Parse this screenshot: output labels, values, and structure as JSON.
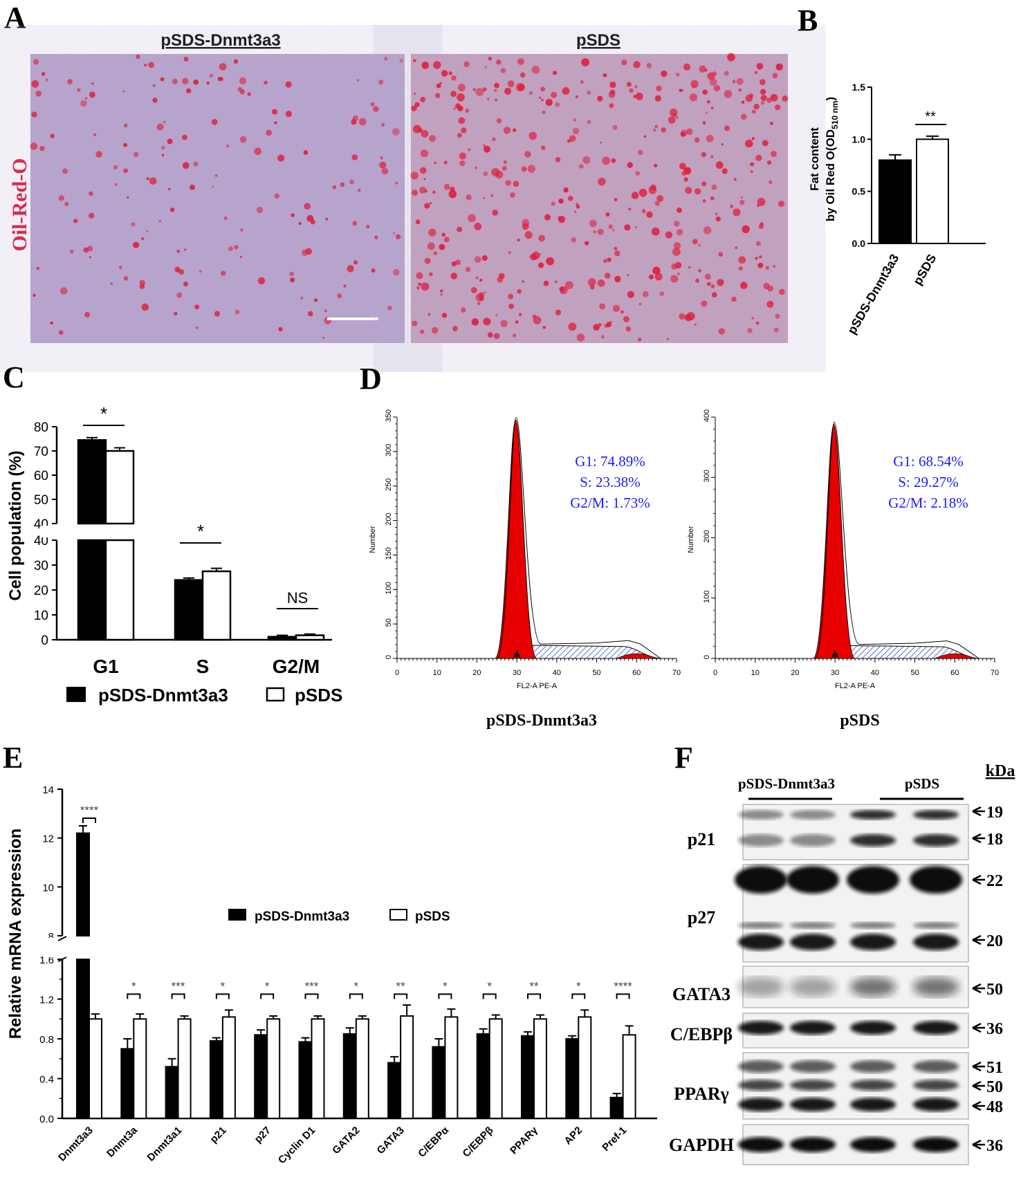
{
  "colors": {
    "bar_dark": "#000000",
    "bar_light": "#ffffff",
    "flow_red": "#e60000",
    "flow_hatch": "#1f3fbf",
    "stat_text": "#1a1aff",
    "oil_red": "#e0203c",
    "micro_bg": "#b7a4cc"
  },
  "panel_labels": {
    "a": "A",
    "b": "B",
    "c": "C",
    "d": "D",
    "e": "E",
    "f": "F"
  },
  "panel_a": {
    "left_title": "pSDS-Dnmt3a3",
    "right_title": "pSDS",
    "stain_label": "Oil-Red-O"
  },
  "panel_b": {
    "chart_data": {
      "type": "bar",
      "categories": [
        "pSDS-Dnmt3a3",
        "pSDS"
      ],
      "values": [
        0.8,
        1.0
      ],
      "errors": [
        0.05,
        0.03
      ],
      "ylabel_line1": "Fat content",
      "ylabel_line2": "by Oil Red O(OD",
      "ylabel_sub": "510 nm",
      "ylabel_end": ")",
      "ylim": [
        0,
        1.5
      ],
      "yticks": [
        "0.0",
        "0.5",
        "1.0",
        "1.5"
      ],
      "significance": "**"
    }
  },
  "panel_c": {
    "chart_data": {
      "type": "bar",
      "categories": [
        "G1",
        "S",
        "G2/M"
      ],
      "series": [
        {
          "name": "pSDS-Dnmt3a3",
          "values": [
            74.5,
            24,
            1.2
          ],
          "errors": [
            1.0,
            0.8,
            0.6
          ]
        },
        {
          "name": "pSDS",
          "values": [
            70,
            27.5,
            1.8
          ],
          "errors": [
            1.3,
            1.2,
            0.5
          ]
        }
      ],
      "ylabel": "Cell population (%)",
      "y_upper_ticks": [
        "40",
        "50",
        "60",
        "70",
        "80"
      ],
      "y_lower_ticks": [
        "0",
        "10",
        "20",
        "30",
        "40"
      ],
      "significance": [
        "*",
        "*",
        "NS"
      ]
    }
  },
  "panel_d": {
    "x_ticks": [
      "0",
      "10",
      "20",
      "30",
      "40",
      "50",
      "60",
      "70"
    ],
    "xlabel": "FL2-A PE-A",
    "ylabel": "Number",
    "left": {
      "title": "pSDS-Dnmt3a3",
      "y_ticks": [
        "0",
        "50",
        "100",
        "150",
        "200",
        "250",
        "300",
        "350"
      ],
      "g1": "G1: 74.89%",
      "s": "S: 23.38%",
      "g2m": "G2/M: 1.73%"
    },
    "right": {
      "title": "pSDS",
      "y_ticks": [
        "0",
        "100",
        "200",
        "300",
        "400"
      ],
      "g1": "G1: 68.54%",
      "s": "S: 29.27%",
      "g2m": "G2/M: 2.18%"
    }
  },
  "panel_e": {
    "chart_data": {
      "type": "bar",
      "categories": [
        "Dnmt3a3",
        "Dnmt3a",
        "Dnmt3a1",
        "p21",
        "p27",
        "Cyclin D1",
        "GATA2",
        "GATA3",
        "C/EBPα",
        "C/EBPβ",
        "PPARγ",
        "AP2",
        "Pref-1"
      ],
      "series": [
        {
          "name": "pSDS-Dnmt3a3",
          "values": [
            12.2,
            0.7,
            0.52,
            0.78,
            0.84,
            0.77,
            0.85,
            0.56,
            0.72,
            0.85,
            0.83,
            0.8,
            0.21
          ],
          "errors": [
            0.3,
            0.1,
            0.08,
            0.03,
            0.05,
            0.04,
            0.06,
            0.06,
            0.08,
            0.05,
            0.04,
            0.03,
            0.04
          ]
        },
        {
          "name": "pSDS",
          "values": [
            1.0,
            1.0,
            1.0,
            1.02,
            1.0,
            1.0,
            1.0,
            1.03,
            1.02,
            1.0,
            1.0,
            1.02,
            0.84
          ],
          "errors": [
            0.05,
            0.05,
            0.03,
            0.07,
            0.03,
            0.03,
            0.03,
            0.11,
            0.08,
            0.04,
            0.04,
            0.07,
            0.09
          ]
        }
      ],
      "ylabel": "Relative mRNA expression",
      "y_lower_ticks": [
        "0.0",
        "0.4",
        "0.8",
        "1.2",
        "1.6"
      ],
      "y_upper_ticks": [
        "8",
        "10",
        "12",
        "14"
      ],
      "significance": [
        "****",
        "*",
        "***",
        "*",
        "*",
        "***",
        "*",
        "**",
        "*",
        "*",
        "**",
        "*",
        "****"
      ]
    }
  },
  "panel_f": {
    "group1": "pSDS-Dnmt3a3",
    "group2": "pSDS",
    "kda_header": "kDa",
    "blots": [
      {
        "label": "p21",
        "markers": [
          "19",
          "18"
        ]
      },
      {
        "label": "p27",
        "markers": [
          "22",
          "20"
        ]
      },
      {
        "label": "GATA3",
        "markers": [
          "50"
        ]
      },
      {
        "label": "C/EBPβ",
        "markers": [
          "36"
        ]
      },
      {
        "label": "PPARγ",
        "markers": [
          "51",
          "50",
          "48"
        ]
      },
      {
        "label": "GAPDH",
        "markers": [
          "36"
        ]
      }
    ]
  }
}
